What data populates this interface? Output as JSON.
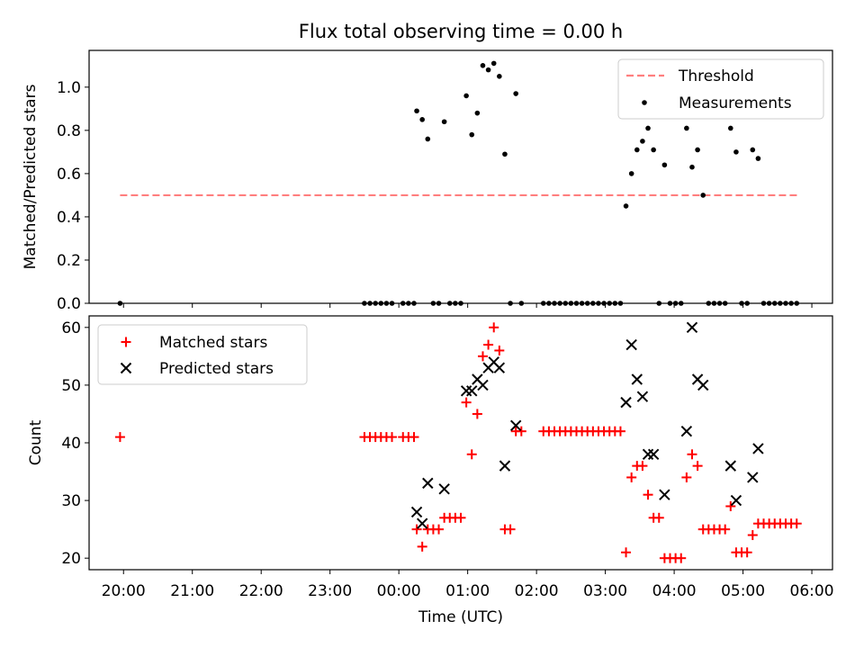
{
  "title": "Flux total observing time = 0.00 h",
  "chart_data": [
    {
      "type": "scatter",
      "ylabel": "Matched/Predicted stars",
      "ylim": [
        0,
        1.17
      ],
      "yticks": [
        "0.0",
        "0.2",
        "0.4",
        "0.6",
        "0.8",
        "1.0"
      ],
      "xlim": [
        -0.5,
        10.3
      ],
      "legend_position": "top-right",
      "threshold": {
        "name": "Threshold",
        "value": 0.5,
        "x": [
          -0.05,
          9.8
        ],
        "color": "#ff7f7f"
      },
      "series": [
        {
          "name": "Measurements",
          "color": "#000000",
          "points": [
            [
              -0.05,
              0.0
            ],
            [
              3.5,
              0.0
            ],
            [
              3.58,
              0.0
            ],
            [
              3.66,
              0.0
            ],
            [
              3.74,
              0.0
            ],
            [
              3.82,
              0.0
            ],
            [
              3.9,
              0.0
            ],
            [
              4.06,
              0.0
            ],
            [
              4.14,
              0.0
            ],
            [
              4.22,
              0.0
            ],
            [
              4.26,
              0.89
            ],
            [
              4.34,
              0.85
            ],
            [
              4.42,
              0.76
            ],
            [
              4.5,
              0.0
            ],
            [
              4.58,
              0.0
            ],
            [
              4.66,
              0.84
            ],
            [
              4.74,
              0.0
            ],
            [
              4.82,
              0.0
            ],
            [
              4.9,
              0.0
            ],
            [
              4.98,
              0.96
            ],
            [
              5.06,
              0.78
            ],
            [
              5.14,
              0.88
            ],
            [
              5.22,
              1.1
            ],
            [
              5.3,
              1.08
            ],
            [
              5.38,
              1.11
            ],
            [
              5.46,
              1.05
            ],
            [
              5.54,
              0.69
            ],
            [
              5.62,
              0.0
            ],
            [
              5.7,
              0.97
            ],
            [
              5.78,
              0.0
            ],
            [
              6.1,
              0.0
            ],
            [
              6.18,
              0.0
            ],
            [
              6.26,
              0.0
            ],
            [
              6.34,
              0.0
            ],
            [
              6.42,
              0.0
            ],
            [
              6.5,
              0.0
            ],
            [
              6.58,
              0.0
            ],
            [
              6.66,
              0.0
            ],
            [
              6.74,
              0.0
            ],
            [
              6.82,
              0.0
            ],
            [
              6.9,
              0.0
            ],
            [
              6.98,
              0.0
            ],
            [
              7.06,
              0.0
            ],
            [
              7.14,
              0.0
            ],
            [
              7.22,
              0.0
            ],
            [
              7.3,
              0.45
            ],
            [
              7.38,
              0.6
            ],
            [
              7.46,
              0.71
            ],
            [
              7.54,
              0.75
            ],
            [
              7.62,
              0.81
            ],
            [
              7.7,
              0.71
            ],
            [
              7.78,
              0.0
            ],
            [
              7.86,
              0.64
            ],
            [
              7.94,
              0.0
            ],
            [
              8.02,
              0.0
            ],
            [
              8.1,
              0.0
            ],
            [
              8.18,
              0.81
            ],
            [
              8.26,
              0.63
            ],
            [
              8.34,
              0.71
            ],
            [
              8.42,
              0.5
            ],
            [
              8.5,
              0.0
            ],
            [
              8.58,
              0.0
            ],
            [
              8.66,
              0.0
            ],
            [
              8.74,
              0.0
            ],
            [
              8.82,
              0.81
            ],
            [
              8.9,
              0.7
            ],
            [
              8.98,
              0.0
            ],
            [
              9.06,
              0.0
            ],
            [
              9.14,
              0.71
            ],
            [
              9.22,
              0.67
            ],
            [
              9.3,
              0.0
            ],
            [
              9.38,
              0.0
            ],
            [
              9.46,
              0.0
            ],
            [
              9.54,
              0.0
            ],
            [
              9.62,
              0.0
            ],
            [
              9.7,
              0.0
            ],
            [
              9.78,
              0.0
            ]
          ]
        }
      ]
    },
    {
      "type": "scatter",
      "ylabel": "Count",
      "xlabel": "Time (UTC)",
      "ylim": [
        18,
        62
      ],
      "yticks": [
        "20",
        "30",
        "40",
        "50",
        "60"
      ],
      "xlim": [
        -0.5,
        10.3
      ],
      "x_tick_values": [
        0,
        1,
        2,
        3,
        4,
        5,
        6,
        7,
        8,
        9,
        10
      ],
      "x_tick_labels": [
        "20:00",
        "21:00",
        "22:00",
        "23:00",
        "00:00",
        "01:00",
        "02:00",
        "03:00",
        "04:00",
        "05:00",
        "06:00"
      ],
      "legend_position": "top-left",
      "series": [
        {
          "name": "Matched stars",
          "marker": "plus",
          "color": "#ff0000",
          "points": [
            [
              -0.05,
              41
            ],
            [
              3.5,
              41
            ],
            [
              3.58,
              41
            ],
            [
              3.66,
              41
            ],
            [
              3.74,
              41
            ],
            [
              3.82,
              41
            ],
            [
              3.9,
              41
            ],
            [
              4.06,
              41
            ],
            [
              4.14,
              41
            ],
            [
              4.22,
              41
            ],
            [
              4.26,
              25
            ],
            [
              4.34,
              22
            ],
            [
              4.42,
              25
            ],
            [
              4.5,
              25
            ],
            [
              4.58,
              25
            ],
            [
              4.66,
              27
            ],
            [
              4.74,
              27
            ],
            [
              4.82,
              27
            ],
            [
              4.9,
              27
            ],
            [
              4.98,
              47
            ],
            [
              5.06,
              38
            ],
            [
              5.14,
              45
            ],
            [
              5.22,
              55
            ],
            [
              5.3,
              57
            ],
            [
              5.38,
              60
            ],
            [
              5.46,
              56
            ],
            [
              5.54,
              25
            ],
            [
              5.62,
              25
            ],
            [
              5.7,
              42
            ],
            [
              5.78,
              42
            ],
            [
              6.1,
              42
            ],
            [
              6.18,
              42
            ],
            [
              6.26,
              42
            ],
            [
              6.34,
              42
            ],
            [
              6.42,
              42
            ],
            [
              6.5,
              42
            ],
            [
              6.58,
              42
            ],
            [
              6.66,
              42
            ],
            [
              6.74,
              42
            ],
            [
              6.82,
              42
            ],
            [
              6.9,
              42
            ],
            [
              6.98,
              42
            ],
            [
              7.06,
              42
            ],
            [
              7.14,
              42
            ],
            [
              7.22,
              42
            ],
            [
              7.3,
              21
            ],
            [
              7.38,
              34
            ],
            [
              7.46,
              36
            ],
            [
              7.54,
              36
            ],
            [
              7.62,
              31
            ],
            [
              7.7,
              27
            ],
            [
              7.78,
              27
            ],
            [
              7.86,
              20
            ],
            [
              7.94,
              20
            ],
            [
              8.02,
              20
            ],
            [
              8.1,
              20
            ],
            [
              8.18,
              34
            ],
            [
              8.26,
              38
            ],
            [
              8.34,
              36
            ],
            [
              8.42,
              25
            ],
            [
              8.5,
              25
            ],
            [
              8.58,
              25
            ],
            [
              8.66,
              25
            ],
            [
              8.74,
              25
            ],
            [
              8.82,
              29
            ],
            [
              8.9,
              21
            ],
            [
              8.98,
              21
            ],
            [
              9.06,
              21
            ],
            [
              9.14,
              24
            ],
            [
              9.22,
              26
            ],
            [
              9.3,
              26
            ],
            [
              9.38,
              26
            ],
            [
              9.46,
              26
            ],
            [
              9.54,
              26
            ],
            [
              9.62,
              26
            ],
            [
              9.7,
              26
            ],
            [
              9.78,
              26
            ]
          ]
        },
        {
          "name": "Predicted stars",
          "marker": "x",
          "color": "#000000",
          "points": [
            [
              4.26,
              28
            ],
            [
              4.34,
              26
            ],
            [
              4.42,
              33
            ],
            [
              4.66,
              32
            ],
            [
              4.98,
              49
            ],
            [
              5.06,
              49
            ],
            [
              5.14,
              51
            ],
            [
              5.22,
              50
            ],
            [
              5.3,
              53
            ],
            [
              5.38,
              54
            ],
            [
              5.46,
              53
            ],
            [
              5.54,
              36
            ],
            [
              5.7,
              43
            ],
            [
              7.3,
              47
            ],
            [
              7.38,
              57
            ],
            [
              7.46,
              51
            ],
            [
              7.54,
              48
            ],
            [
              7.62,
              38
            ],
            [
              7.7,
              38
            ],
            [
              7.86,
              31
            ],
            [
              8.18,
              42
            ],
            [
              8.26,
              60
            ],
            [
              8.34,
              51
            ],
            [
              8.42,
              50
            ],
            [
              8.82,
              36
            ],
            [
              8.9,
              30
            ],
            [
              9.14,
              34
            ],
            [
              9.22,
              39
            ]
          ]
        }
      ]
    }
  ]
}
